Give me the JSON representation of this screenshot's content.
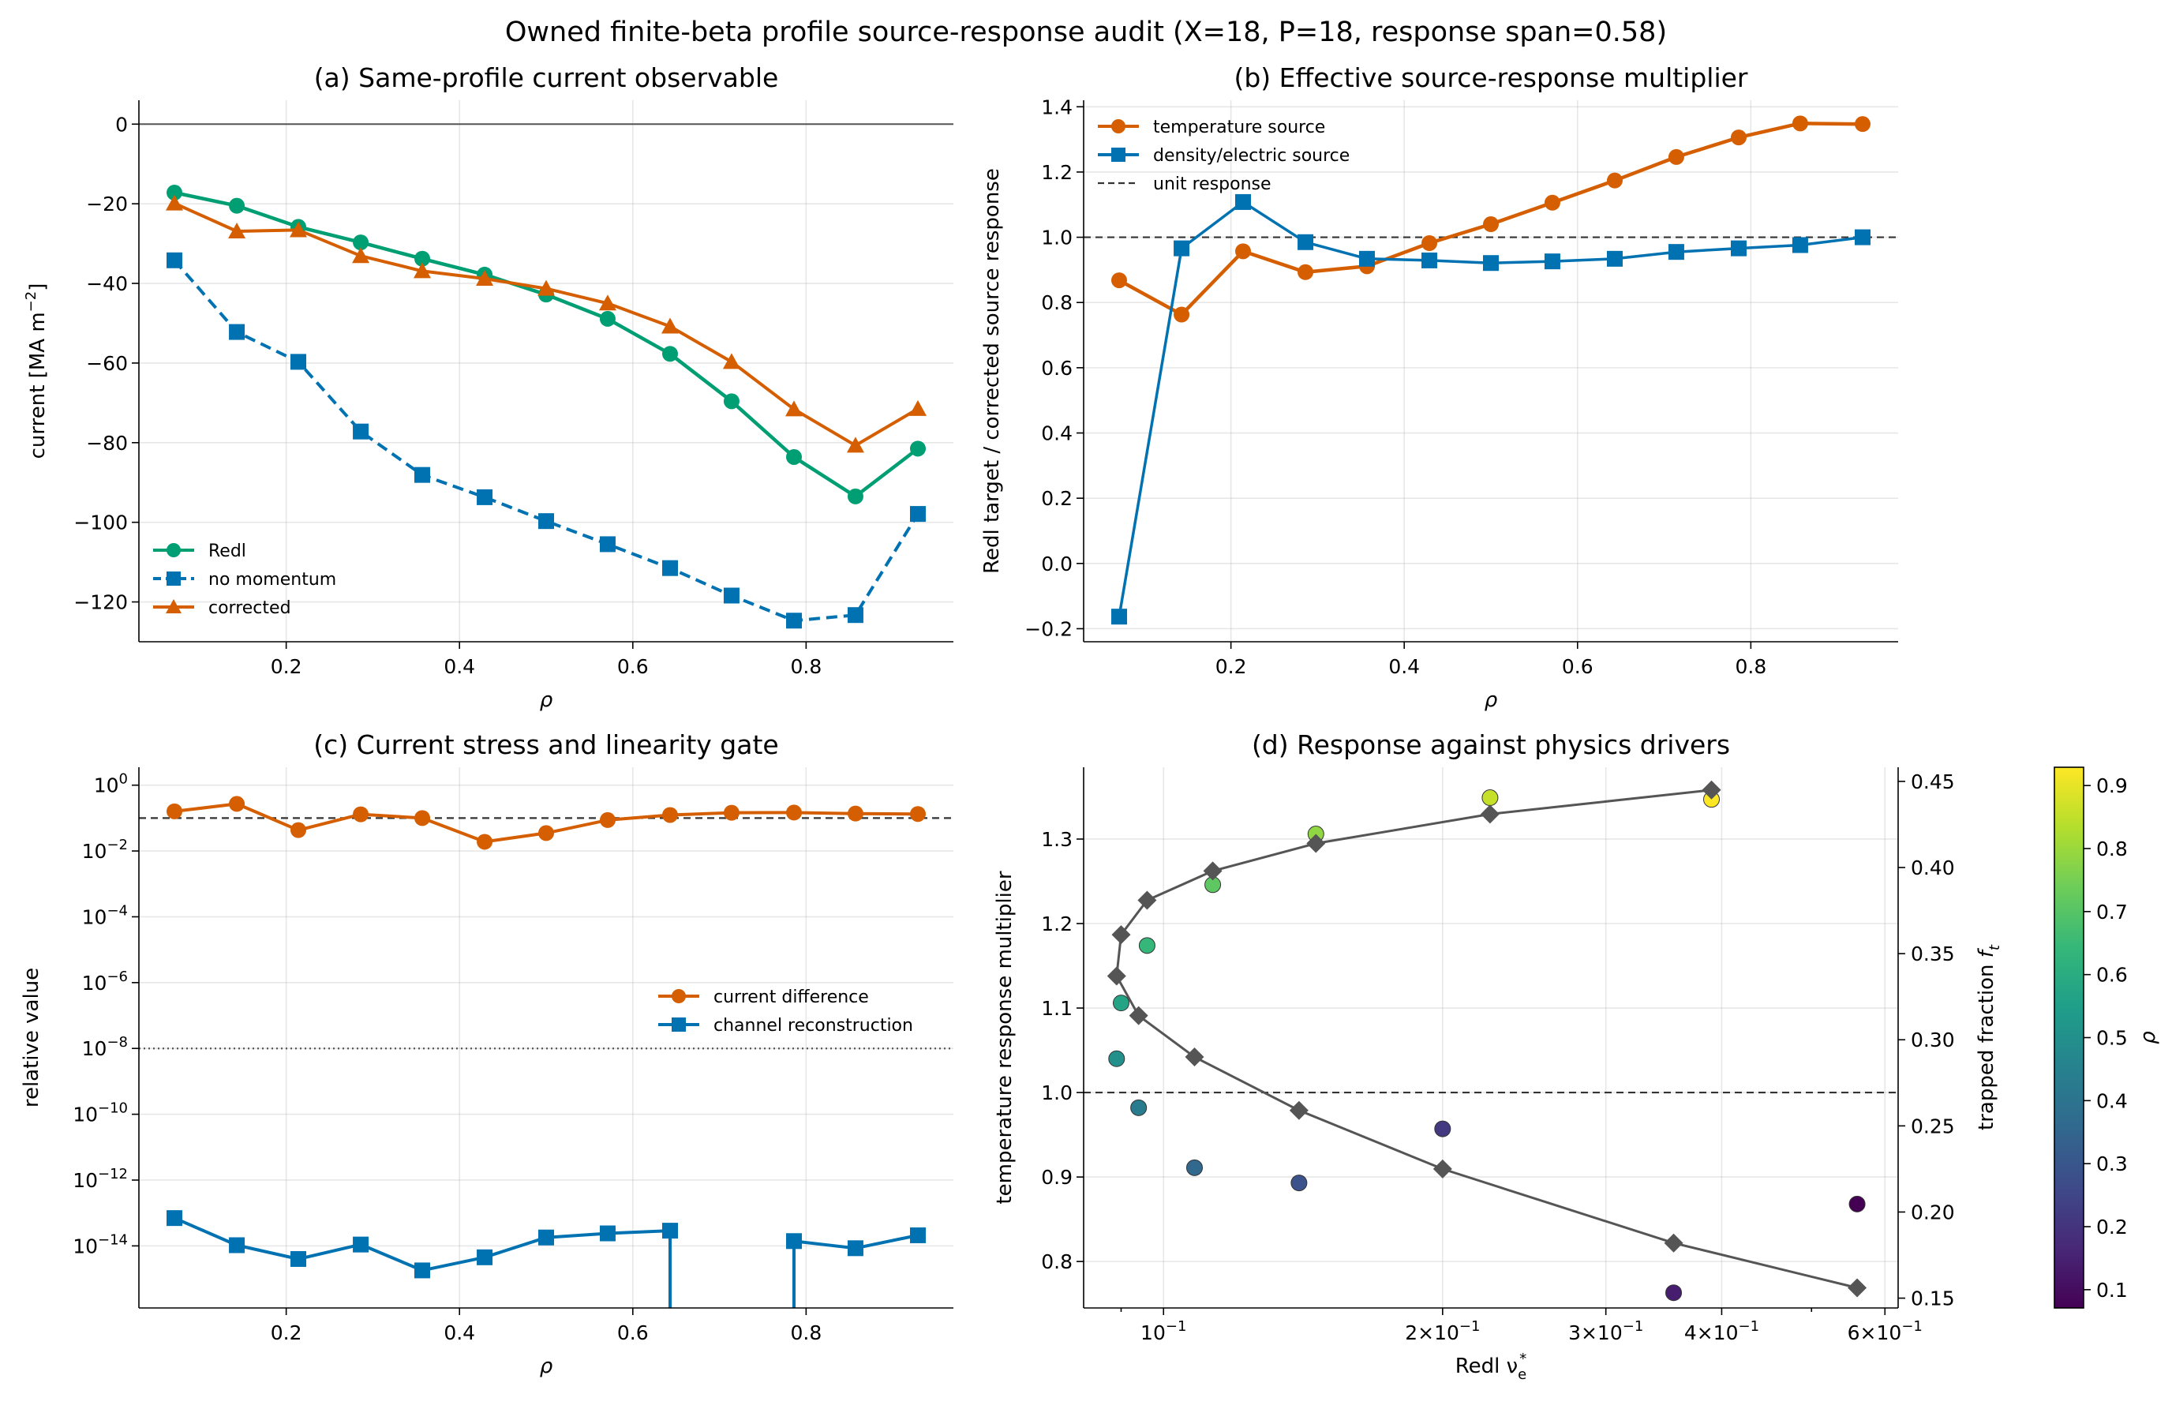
{
  "figure": {
    "title": "Owned finite-beta profile source-response audit (X=18, P=18, response span=0.58)"
  },
  "colors": {
    "green": "#009E73",
    "blue": "#0072B2",
    "orange": "#D55E00",
    "grey": "#555555",
    "black": "#000000"
  },
  "chart_data": [
    {
      "id": "a",
      "type": "line",
      "title": "(a) Same-profile current observable",
      "xlabel": "ρ",
      "ylabel": "current [MA m⁻²]",
      "xlim": [
        0.03,
        0.97
      ],
      "ylim": [
        -130,
        6
      ],
      "xticks": [
        {
          "v": 0.2,
          "label": "0.2"
        },
        {
          "v": 0.4,
          "label": "0.4"
        },
        {
          "v": 0.6,
          "label": "0.6"
        },
        {
          "v": 0.8,
          "label": "0.8"
        }
      ],
      "yticks": [
        {
          "v": 0,
          "label": "0"
        },
        {
          "v": -20,
          "label": "−20"
        },
        {
          "v": -40,
          "label": "−40"
        },
        {
          "v": -60,
          "label": "−60"
        },
        {
          "v": -80,
          "label": "−80"
        },
        {
          "v": -100,
          "label": "−100"
        },
        {
          "v": -120,
          "label": "−120"
        }
      ],
      "grid": true,
      "hlines": [
        {
          "y": 0,
          "color": "#555555",
          "dash": "",
          "width": 2
        }
      ],
      "legend": {
        "placement": "lower-left"
      },
      "x": [
        0.071,
        0.143,
        0.214,
        0.286,
        0.357,
        0.429,
        0.5,
        0.571,
        0.643,
        0.714,
        0.786,
        0.857,
        0.929
      ],
      "series": [
        {
          "name": "Redl",
          "color": "#009E73",
          "marker": "circle",
          "dash": "",
          "width": 4.5,
          "values": [
            -17.2,
            -20.5,
            -25.8,
            -29.7,
            -33.8,
            -37.8,
            -42.8,
            -48.9,
            -57.7,
            -69.6,
            -83.6,
            -93.5,
            -81.5
          ]
        },
        {
          "name": "no momentum",
          "color": "#0072B2",
          "marker": "square",
          "dash": "14 8",
          "width": 4,
          "values": [
            -34.2,
            -52.2,
            -59.7,
            -77.2,
            -88.1,
            -93.7,
            -99.7,
            -105.5,
            -111.5,
            -118.4,
            -124.7,
            -123.3,
            -97.9
          ]
        },
        {
          "name": "corrected",
          "color": "#D55E00",
          "marker": "triangle",
          "dash": "",
          "width": 4,
          "values": [
            -19.9,
            -26.9,
            -26.6,
            -33.1,
            -36.9,
            -38.8,
            -41.3,
            -45.0,
            -50.8,
            -59.7,
            -71.6,
            -80.7,
            -71.5
          ]
        }
      ]
    },
    {
      "id": "b",
      "type": "line",
      "title": "(b) Effective source-response multiplier",
      "xlabel": "ρ",
      "ylabel": "Redl target / corrected source response",
      "xlim": [
        0.03,
        0.97
      ],
      "ylim": [
        -0.24,
        1.42
      ],
      "xticks": [
        {
          "v": 0.2,
          "label": "0.2"
        },
        {
          "v": 0.4,
          "label": "0.4"
        },
        {
          "v": 0.6,
          "label": "0.6"
        },
        {
          "v": 0.8,
          "label": "0.8"
        }
      ],
      "yticks": [
        {
          "v": -0.2,
          "label": "−0.2"
        },
        {
          "v": 0.0,
          "label": "0.0"
        },
        {
          "v": 0.2,
          "label": "0.2"
        },
        {
          "v": 0.4,
          "label": "0.4"
        },
        {
          "v": 0.6,
          "label": "0.6"
        },
        {
          "v": 0.8,
          "label": "0.8"
        },
        {
          "v": 1.0,
          "label": "1.0"
        },
        {
          "v": 1.2,
          "label": "1.2"
        },
        {
          "v": 1.4,
          "label": "1.4"
        }
      ],
      "grid": true,
      "hlines": [
        {
          "y": 1.0,
          "color": "#333333",
          "dash": "9 6",
          "width": 2.2
        }
      ],
      "legend": {
        "placement": "upper-left",
        "extra": [
          {
            "name": "unit response",
            "color": "#333333",
            "dash": "9 6"
          }
        ]
      },
      "x": [
        0.071,
        0.143,
        0.214,
        0.286,
        0.357,
        0.429,
        0.5,
        0.571,
        0.643,
        0.714,
        0.786,
        0.857,
        0.929
      ],
      "series": [
        {
          "name": "temperature source",
          "color": "#D55E00",
          "marker": "circle",
          "dash": "",
          "width": 4.5,
          "values": [
            0.868,
            0.763,
            0.957,
            0.893,
            0.911,
            0.982,
            1.04,
            1.106,
            1.174,
            1.246,
            1.306,
            1.349,
            1.347
          ]
        },
        {
          "name": "density/electric source",
          "color": "#0072B2",
          "marker": "square",
          "dash": "",
          "width": 3.5,
          "values": [
            -0.163,
            0.966,
            1.108,
            0.985,
            0.934,
            0.929,
            0.921,
            0.926,
            0.934,
            0.955,
            0.966,
            0.976,
            1.0
          ]
        }
      ]
    },
    {
      "id": "c",
      "type": "line",
      "title": "(c) Current stress and linearity gate",
      "xlabel": "ρ",
      "ylabel": "relative value",
      "yscale": "log",
      "xlim": [
        0.03,
        0.97
      ],
      "ylim": [
        1.3e-16,
        3.5
      ],
      "xticks": [
        {
          "v": 0.2,
          "label": "0.2"
        },
        {
          "v": 0.4,
          "label": "0.4"
        },
        {
          "v": 0.6,
          "label": "0.6"
        },
        {
          "v": 0.8,
          "label": "0.8"
        }
      ],
      "yticks": [
        {
          "v": 1,
          "base": "10",
          "exp": "0"
        },
        {
          "v": 0.01,
          "base": "10",
          "exp": "−2"
        },
        {
          "v": 0.0001,
          "base": "10",
          "exp": "−4"
        },
        {
          "v": 1e-06,
          "base": "10",
          "exp": "−6"
        },
        {
          "v": 1e-08,
          "base": "10",
          "exp": "−8"
        },
        {
          "v": 1e-10,
          "base": "10",
          "exp": "−10"
        },
        {
          "v": 1e-12,
          "base": "10",
          "exp": "−12"
        },
        {
          "v": 1e-14,
          "base": "10",
          "exp": "−14"
        }
      ],
      "grid": true,
      "hlines": [
        {
          "y": 0.1,
          "color": "#333333",
          "dash": "9 6",
          "width": 2.2
        },
        {
          "y": 1e-08,
          "color": "#555555",
          "dash": "2 4",
          "width": 2.2
        }
      ],
      "legend": {
        "placement": "center-right"
      },
      "x": [
        0.071,
        0.143,
        0.214,
        0.286,
        0.357,
        0.429,
        0.5,
        0.571,
        0.643,
        0.714,
        0.786,
        0.857,
        0.929
      ],
      "series": [
        {
          "name": "current difference",
          "color": "#D55E00",
          "marker": "circle",
          "dash": "",
          "width": 4,
          "values": [
            0.16,
            0.27,
            0.043,
            0.13,
            0.1,
            0.019,
            0.035,
            0.087,
            0.124,
            0.145,
            0.147,
            0.137,
            0.133
          ]
        },
        {
          "name": "channel reconstruction",
          "color": "#0072B2",
          "marker": "square",
          "dash": "",
          "width": 4,
          "values": [
            7e-14,
            1.05e-14,
            4e-15,
            1.1e-14,
            1.8e-15,
            4.5e-15,
            1.8e-14,
            2.4e-14,
            2.9e-14,
            null,
            1.4e-14,
            8.5e-15,
            2.1e-14
          ]
        }
      ]
    },
    {
      "id": "d",
      "type": "scatter",
      "title": "(d) Response against physics drivers",
      "xlabel": "Redl ν*ₑ",
      "ylabel": "temperature response multiplier",
      "y2label": "trapped fraction fₜ",
      "xscale": "log",
      "xlim": [
        0.082,
        0.62
      ],
      "ylim": [
        0.745,
        1.385
      ],
      "y2lim": [
        0.1443,
        0.4582
      ],
      "xticks": [
        {
          "v": 0.1,
          "base": "10",
          "exp": "−1",
          "mant": ""
        },
        {
          "v": 0.2,
          "base": "10",
          "exp": "−1",
          "mant": "2×"
        },
        {
          "v": 0.3,
          "base": "10",
          "exp": "−1",
          "mant": "3×"
        },
        {
          "v": 0.4,
          "base": "10",
          "exp": "−1",
          "mant": "4×"
        },
        {
          "v": 0.6,
          "base": "10",
          "exp": "−1",
          "mant": "6×"
        }
      ],
      "yticks": [
        {
          "v": 0.8,
          "label": "0.8"
        },
        {
          "v": 0.9,
          "label": "0.9"
        },
        {
          "v": 1.0,
          "label": "1.0"
        },
        {
          "v": 1.1,
          "label": "1.1"
        },
        {
          "v": 1.2,
          "label": "1.2"
        },
        {
          "v": 1.3,
          "label": "1.3"
        }
      ],
      "y2ticks": [
        {
          "v": 0.15,
          "label": "0.15"
        },
        {
          "v": 0.2,
          "label": "0.20"
        },
        {
          "v": 0.25,
          "label": "0.25"
        },
        {
          "v": 0.3,
          "label": "0.30"
        },
        {
          "v": 0.35,
          "label": "0.35"
        },
        {
          "v": 0.4,
          "label": "0.40"
        },
        {
          "v": 0.45,
          "label": "0.45"
        }
      ],
      "grid": true,
      "hlines": [
        {
          "y": 1.0,
          "color": "#333333",
          "dash": "9 6",
          "width": 2.2
        }
      ],
      "points": {
        "rho": [
          0.071,
          0.143,
          0.214,
          0.286,
          0.357,
          0.429,
          0.5,
          0.571,
          0.643,
          0.714,
          0.786,
          0.857,
          0.929
        ],
        "nu": [
          0.56,
          0.355,
          0.2,
          0.14,
          0.108,
          0.094,
          0.089,
          0.09,
          0.096,
          0.113,
          0.146,
          0.225,
          0.39
        ],
        "multiplier": [
          0.868,
          0.763,
          0.957,
          0.893,
          0.911,
          0.982,
          1.04,
          1.106,
          1.174,
          1.246,
          1.306,
          1.349,
          1.347
        ]
      },
      "trapped_fraction": {
        "nu": [
          0.56,
          0.355,
          0.2,
          0.14,
          0.108,
          0.094,
          0.089,
          0.09,
          0.096,
          0.113,
          0.146,
          0.225,
          0.39
        ],
        "values": [
          0.156,
          0.182,
          0.225,
          0.259,
          0.29,
          0.314,
          0.337,
          0.361,
          0.381,
          0.398,
          0.414,
          0.431,
          0.445
        ]
      },
      "colorbar": {
        "label": "ρ",
        "range": [
          0.071,
          0.929
        ],
        "ticks": [
          {
            "v": 0.1,
            "label": "0.1"
          },
          {
            "v": 0.2,
            "label": "0.2"
          },
          {
            "v": 0.3,
            "label": "0.3"
          },
          {
            "v": 0.4,
            "label": "0.4"
          },
          {
            "v": 0.5,
            "label": "0.5"
          },
          {
            "v": 0.6,
            "label": "0.6"
          },
          {
            "v": 0.7,
            "label": "0.7"
          },
          {
            "v": 0.8,
            "label": "0.8"
          },
          {
            "v": 0.9,
            "label": "0.9"
          }
        ]
      }
    }
  ]
}
